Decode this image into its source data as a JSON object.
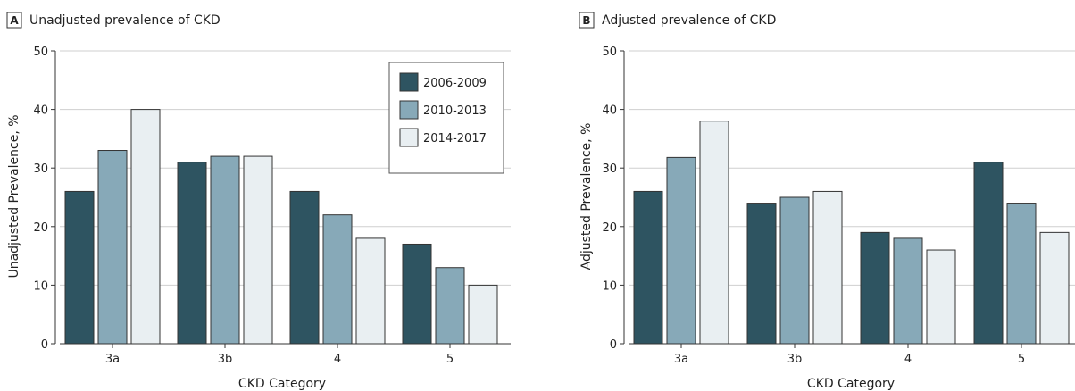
{
  "chart_data": [
    {
      "type": "bar",
      "panel_letter": "A",
      "title": "Unadjusted prevalence of CKD",
      "xlabel": "CKD Category",
      "ylabel": "Unadjusted Prevalence, %",
      "ylim": [
        0,
        50
      ],
      "yticks": [
        "0",
        "10",
        "20",
        "30",
        "40",
        "50"
      ],
      "categories": [
        "3a",
        "3b",
        "4",
        "5"
      ],
      "grid": "horizontal",
      "legend_position": "top-right",
      "series": [
        {
          "name": "2006-2009",
          "color": "#2e5461",
          "values": [
            26,
            31,
            26,
            17
          ]
        },
        {
          "name": "2010-2013",
          "color": "#87a9b8",
          "values": [
            33,
            32,
            22,
            13
          ]
        },
        {
          "name": "2014-2017",
          "color": "#e9eff2",
          "values": [
            40,
            32,
            18,
            10
          ]
        }
      ]
    },
    {
      "type": "bar",
      "panel_letter": "B",
      "title": "Adjusted prevalence of CKD",
      "xlabel": "CKD Category",
      "ylabel": "Adjusted Prevalence, %",
      "ylim": [
        0,
        50
      ],
      "yticks": [
        "0",
        "10",
        "20",
        "30",
        "40",
        "50"
      ],
      "categories": [
        "3a",
        "3b",
        "4",
        "5"
      ],
      "grid": "horizontal",
      "series": [
        {
          "name": "2006-2009",
          "color": "#2e5461",
          "values": [
            26,
            24,
            19,
            31
          ]
        },
        {
          "name": "2010-2013",
          "color": "#87a9b8",
          "values": [
            31.8,
            25,
            18,
            24
          ]
        },
        {
          "name": "2014-2017",
          "color": "#e9eff2",
          "values": [
            38,
            26,
            16,
            19
          ]
        }
      ]
    }
  ]
}
